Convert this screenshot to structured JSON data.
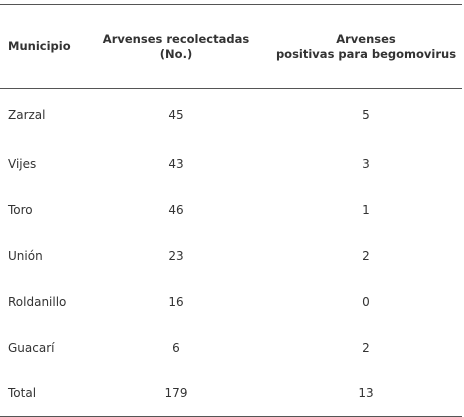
{
  "table": {
    "headers": {
      "municipio": "Municipio",
      "col2_line1": "Arvenses recolectadas",
      "col2_line2": "(No.)",
      "col3_line1": "Arvenses",
      "col3_line2": "positivas para begomovirus"
    },
    "rows": [
      {
        "municipio": "Zarzal",
        "recolectadas": "45",
        "positivas": "5"
      },
      {
        "municipio": "Vijes",
        "recolectadas": "43",
        "positivas": "3"
      },
      {
        "municipio": "Toro",
        "recolectadas": "46",
        "positivas": "1"
      },
      {
        "municipio": "Unión",
        "recolectadas": "23",
        "positivas": "2"
      },
      {
        "municipio": "Roldanillo",
        "recolectadas": "16",
        "positivas": "0"
      },
      {
        "municipio": "Guacarí",
        "recolectadas": "6",
        "positivas": "2"
      },
      {
        "municipio": "Total",
        "recolectadas": "179",
        "positivas": "13"
      }
    ]
  }
}
